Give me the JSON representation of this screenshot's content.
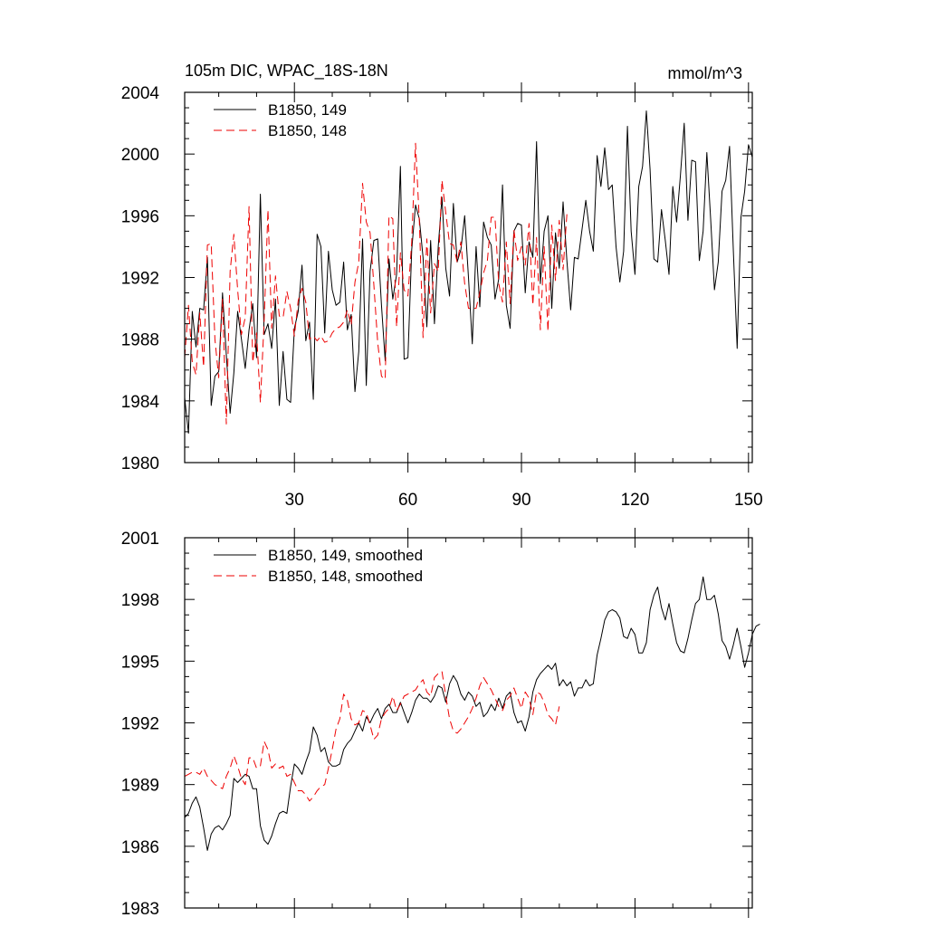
{
  "colors": {
    "black": "#000000",
    "red": "#ee0000"
  },
  "chart_data": [
    {
      "type": "line",
      "title": "105m DIC, WPAC_18S-18N",
      "units": "mmol/m^3",
      "xlim": [
        1,
        151
      ],
      "ylim": [
        1980,
        2004
      ],
      "xticks": [
        30,
        60,
        90,
        120,
        150
      ],
      "xtick_labels": [
        "30",
        "60",
        "90",
        "120",
        "150"
      ],
      "yticks": [
        1980,
        1984,
        1988,
        1992,
        1996,
        2000,
        2004
      ],
      "ytick_labels": [
        "1980",
        "1984",
        "1988",
        "1992",
        "1996",
        "2000",
        "2004"
      ],
      "legend": [
        "B1850, 149",
        "B1850, 148"
      ],
      "series": [
        {
          "name": "B1850, 149",
          "color": "#000000",
          "dash": "solid",
          "x_start": 1,
          "values": [
            1984.2,
            1981.9,
            1989.8,
            1987.5,
            1990.0,
            1989.9,
            1993.3,
            1983.7,
            1985.6,
            1985.9,
            1991.0,
            1987.0,
            1983.2,
            1985.8,
            1989.8,
            1988.0,
            1986.1,
            1988.6,
            1990.3,
            1986.8,
            1997.4,
            1988.3,
            1989.0,
            1987.4,
            1990.6,
            1983.7,
            1987.2,
            1984.1,
            1983.9,
            1988.7,
            1989.8,
            1992.8,
            1987.9,
            1989.1,
            1984.1,
            1994.8,
            1994.0,
            1988.4,
            1993.7,
            1991.2,
            1990.2,
            1990.4,
            1993.0,
            1988.6,
            1989.6,
            1984.6,
            1987.2,
            1994.5,
            1985.0,
            1992.4,
            1994.4,
            1994.5,
            1990.2,
            1986.6,
            1993.2,
            1990.6,
            1992.2,
            1999.2,
            1986.7,
            1986.8,
            1993.8,
            1996.7,
            1995.8,
            1993.3,
            1988.8,
            1994.4,
            1989.0,
            1994.0,
            1997.2,
            1992.6,
            1990.8,
            1996.8,
            1993.0,
            1993.8,
            1996.0,
            1992.0,
            1987.7,
            1994.0,
            1990.1,
            1995.6,
            1994.6,
            1994.1,
            1990.6,
            1991.9,
            1998.0,
            1990.2,
            1988.7,
            1995.0,
            1995.5,
            1995.4,
            1991.0,
            1994.3,
            1993.3,
            2000.8,
            1991.6,
            1995.0,
            1996.0,
            1990.0,
            1994.9,
            1992.6,
            1996.9,
            1993.1,
            1989.9,
            1993.3,
            1993.2,
            1995.1,
            1997.0,
            1995.0,
            1993.7,
            1999.9,
            1997.9,
            2000.4,
            1997.7,
            1998.0,
            1994.0,
            1991.7,
            1993.7,
            2001.8,
            1995.0,
            1992.2,
            1997.9,
            1999.2,
            2002.8,
            1999.0,
            1993.2,
            1993.0,
            1996.4,
            1994.4,
            1992.2,
            1997.9,
            1995.6,
            1998.6,
            2002.0,
            1995.7,
            1999.6,
            1999.5,
            1993.1,
            1995.0,
            2000.1,
            1995.8,
            1991.2,
            1993.0,
            1997.6,
            1998.3,
            2000.5,
            1993.7,
            1987.4,
            1995.9,
            1997.6,
            2000.6,
            1999.8
          ]
        },
        {
          "name": "B1850, 148",
          "color": "#ee0000",
          "dash": "dashed",
          "x_start": 1,
          "values": [
            1986.8,
            1990.2,
            1986.5,
            1985.7,
            1989.7,
            1986.2,
            1994.1,
            1994.2,
            1988.0,
            1985.5,
            1990.6,
            1982.5,
            1992.4,
            1994.8,
            1991.2,
            1988.3,
            1989.4,
            1996.6,
            1986.5,
            1988.4,
            1983.9,
            1989.2,
            1996.4,
            1988.7,
            1992.1,
            1989.5,
            1989.4,
            1991.1,
            1990.0,
            1988.2,
            1990.5,
            1991.3,
            1990.4,
            1988.0,
            1988.2,
            1987.9,
            1988.2,
            1987.8,
            1987.9,
            1988.4,
            1988.7,
            1988.8,
            1989.1,
            1989.9,
            1988.9,
            1991.7,
            1993.0,
            1998.1,
            1995.6,
            1994.9,
            1991.5,
            1987.8,
            1985.6,
            1985.4,
            1996.0,
            1995.8,
            1988.8,
            1993.6,
            1991.2,
            1990.8,
            1994.3,
            2000.7,
            1995.7,
            1988.1,
            1994.5,
            1989.7,
            1992.9,
            1992.4,
            1998.3,
            1996.2,
            1994.2,
            1994.1,
            1993.0,
            1994.3,
            1991.6,
            1990.0,
            1990.0,
            1990.0,
            1991.0,
            1992.3,
            1993.1,
            1995.9,
            1995.9,
            1991.6,
            1990.4,
            1994.3,
            1990.3,
            1995.1,
            1993.1,
            1994.0,
            1992.8,
            1995.5,
            1990.2,
            1994.6,
            1988.6,
            1994.0,
            1988.5,
            1995.4,
            1991.8,
            1995.7,
            1992.5,
            1996.1
          ]
        }
      ]
    },
    {
      "type": "line",
      "xlim": [
        1,
        151
      ],
      "ylim": [
        1983,
        2001
      ],
      "xticks": [
        30,
        60,
        90,
        120,
        150
      ],
      "yticks": [
        1983,
        1986,
        1989,
        1992,
        1995,
        1998,
        2001
      ],
      "ytick_labels": [
        "1983",
        "1986",
        "1989",
        "1992",
        "1995",
        "1998",
        "2001"
      ],
      "legend": [
        "B1850, 149, smoothed",
        "B1850, 148, smoothed"
      ],
      "series": [
        {
          "name": "B1850, 149, smoothed",
          "color": "#000000",
          "dash": "solid",
          "x_start": 1,
          "values": [
            1987.4,
            1987.6,
            1988.1,
            1988.4,
            1987.9,
            1986.9,
            1985.8,
            1986.6,
            1986.9,
            1987.0,
            1986.8,
            1987.1,
            1987.5,
            1989.3,
            1989.1,
            1989.3,
            1989.5,
            1989.4,
            1988.8,
            1988.8,
            1987.0,
            1986.3,
            1986.1,
            1986.5,
            1987.1,
            1987.6,
            1987.7,
            1987.6,
            1988.9,
            1990.0,
            1989.8,
            1989.5,
            1990.1,
            1990.6,
            1991.8,
            1991.4,
            1990.6,
            1990.8,
            1990.1,
            1989.9,
            1989.9,
            1990.0,
            1990.7,
            1991.0,
            1991.2,
            1991.6,
            1992.0,
            1991.6,
            1992.3,
            1992.0,
            1992.4,
            1992.7,
            1992.2,
            1992.7,
            1992.9,
            1992.5,
            1992.5,
            1993.0,
            1992.5,
            1992.0,
            1992.5,
            1993.1,
            1993.4,
            1993.2,
            1993.2,
            1993.0,
            1993.3,
            1993.8,
            1993.7,
            1993.0,
            1993.9,
            1994.3,
            1994.0,
            1993.4,
            1993.1,
            1993.5,
            1993.3,
            1992.8,
            1993.0,
            1992.3,
            1992.5,
            1992.9,
            1992.6,
            1993.2,
            1992.7,
            1993.3,
            1993.5,
            1992.5,
            1992.0,
            1992.1,
            1991.6,
            1992.3,
            1993.5,
            1994.1,
            1994.4,
            1994.6,
            1994.8,
            1994.6,
            1994.9,
            1993.8,
            1994.1,
            1993.8,
            1994.0,
            1993.3,
            1993.7,
            1993.7,
            1994.1,
            1993.8,
            1993.9,
            1995.3,
            1996.1,
            1997.0,
            1997.4,
            1997.5,
            1997.4,
            1997.1,
            1996.2,
            1996.1,
            1996.6,
            1996.3,
            1995.4,
            1995.4,
            1995.9,
            1997.5,
            1998.2,
            1998.6,
            1997.6,
            1997.0,
            1997.8,
            1996.8,
            1995.9,
            1995.5,
            1995.4,
            1996.1,
            1997.0,
            1997.8,
            1998.0,
            1999.1,
            1998.0,
            1998.0,
            1998.2,
            1997.3,
            1996.0,
            1995.7,
            1995.1,
            1995.8,
            1996.6,
            1995.7,
            1994.7,
            1995.4,
            1996.3,
            1996.7,
            1996.8
          ]
        },
        {
          "name": "B1850, 148, smoothed",
          "color": "#ee0000",
          "dash": "dashed",
          "x_start": 1,
          "values": [
            1989.4,
            1989.5,
            1989.6,
            1989.6,
            1989.5,
            1989.8,
            1989.4,
            1989.2,
            1989.0,
            1988.9,
            1988.8,
            1989.4,
            1989.8,
            1990.4,
            1989.9,
            1989.3,
            1989.0,
            1990.3,
            1990.3,
            1989.8,
            1989.9,
            1991.1,
            1990.7,
            1989.8,
            1990.0,
            1989.8,
            1989.9,
            1989.4,
            1989.5,
            1989.1,
            1988.7,
            1988.7,
            1988.5,
            1988.2,
            1988.4,
            1988.7,
            1988.9,
            1989.0,
            1989.8,
            1990.7,
            1991.7,
            1992.2,
            1993.4,
            1993.1,
            1992.2,
            1991.9,
            1992.0,
            1992.6,
            1992.5,
            1991.9,
            1991.2,
            1991.4,
            1992.2,
            1992.5,
            1992.7,
            1993.3,
            1992.6,
            1992.9,
            1993.3,
            1993.4,
            1993.5,
            1993.6,
            1993.9,
            1994.1,
            1993.5,
            1993.3,
            1994.2,
            1994.4,
            1994.5,
            1993.3,
            1992.2,
            1991.6,
            1991.5,
            1991.7,
            1992.0,
            1992.3,
            1992.7,
            1993.2,
            1993.8,
            1994.2,
            1993.9,
            1993.6,
            1993.2,
            1992.8,
            1992.6,
            1993.1,
            1993.3,
            1993.7,
            1993.2,
            1992.7,
            1993.5,
            1993.2,
            1992.4,
            1993.5,
            1993.4,
            1993.0,
            1992.4,
            1992.2,
            1991.9,
            1992.8
          ]
        }
      ]
    }
  ]
}
